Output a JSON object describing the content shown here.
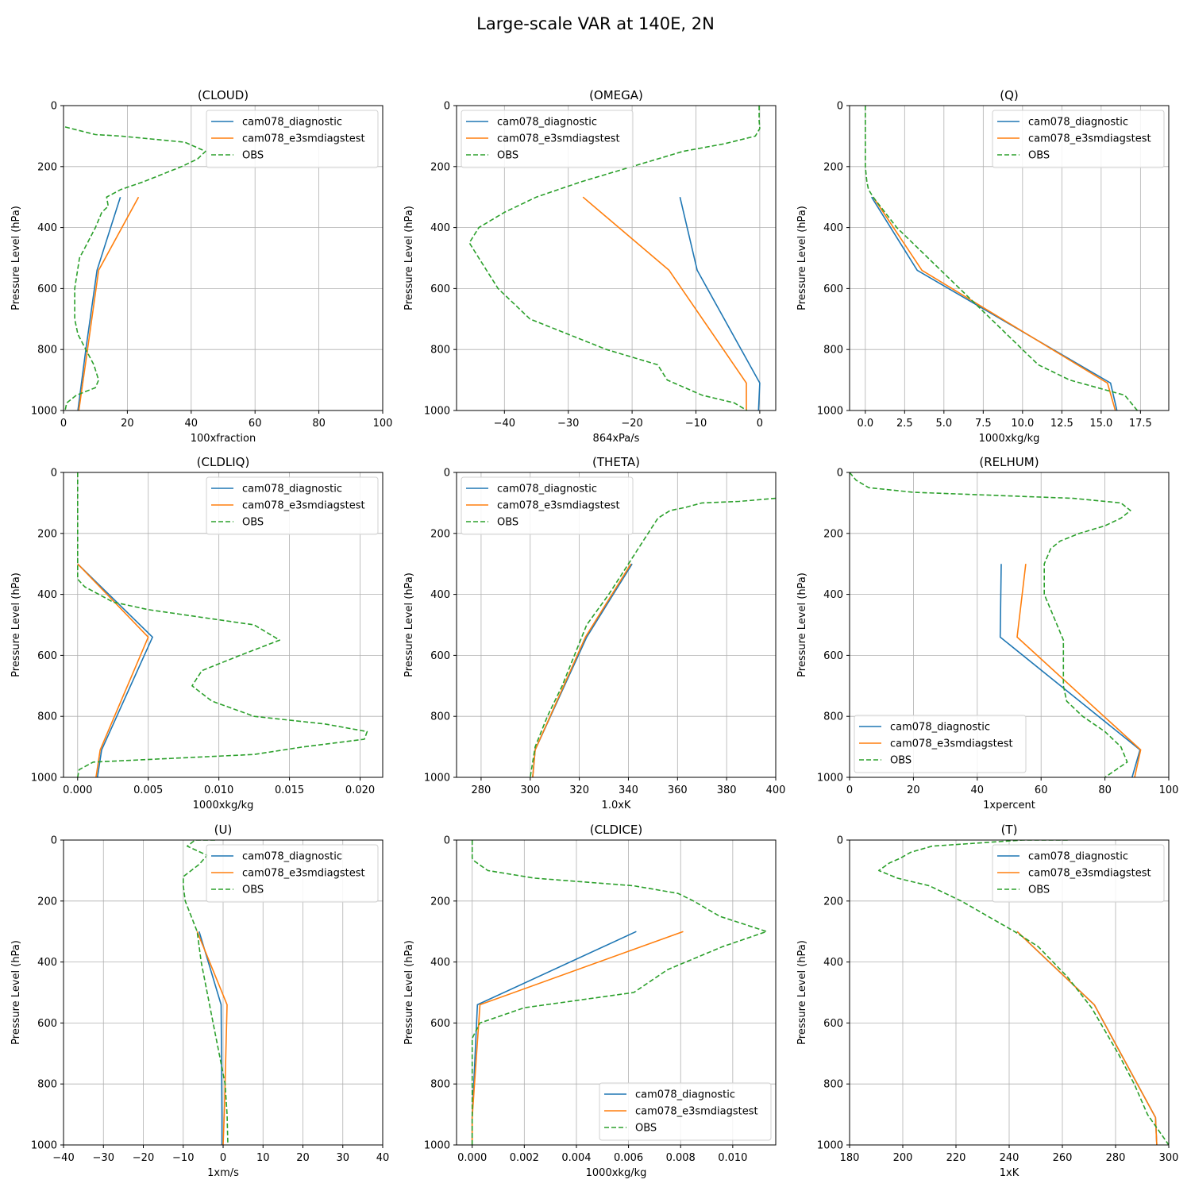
{
  "figure": {
    "title": "Large-scale VAR at 140E, 2N",
    "colors": {
      "diagnostic": "#1f77b4",
      "e3smdiagstest": "#ff7f0e",
      "obs": "#2ca02c"
    }
  },
  "chart_data": [
    {
      "type": "line",
      "title": "(CLOUD)",
      "xlabel": "100xfraction",
      "ylabel": "Pressure Level (hPa)",
      "xlim": [
        0,
        100
      ],
      "ylim": [
        1000,
        0
      ],
      "xticks": [
        0,
        20,
        40,
        60,
        80,
        100
      ],
      "xtick_labels": [
        "0",
        "20",
        "40",
        "60",
        "80",
        "100"
      ],
      "yticks": [
        0,
        200,
        400,
        600,
        800,
        1000
      ],
      "ytick_labels": [
        "0",
        "200",
        "400",
        "600",
        "800",
        "1000"
      ],
      "grid": true,
      "legend": "upper-right",
      "series": [
        {
          "name": "cam078_diagnostic",
          "style": "solid",
          "x": [
            17.8,
            10.5,
            7,
            4.5
          ],
          "y": [
            300,
            540,
            800,
            1000
          ]
        },
        {
          "name": "cam078_e3smdiagstest",
          "style": "solid",
          "x": [
            23.5,
            11,
            7.5,
            4.8
          ],
          "y": [
            300,
            540,
            800,
            1000
          ]
        },
        {
          "name": "OBS",
          "style": "dashed",
          "x": [
            0.5,
            10,
            18,
            38,
            44.5,
            42,
            37,
            31,
            25,
            18,
            13.5,
            14,
            12,
            10,
            7.5,
            5,
            3.5,
            3.5,
            4.5,
            7,
            9.5,
            11,
            10,
            4,
            1,
            0.5
          ],
          "y": [
            70,
            95,
            100,
            120,
            150,
            175,
            200,
            225,
            250,
            275,
            300,
            330,
            350,
            400,
            450,
            500,
            600,
            700,
            750,
            800,
            850,
            900,
            925,
            950,
            975,
            1000
          ]
        }
      ]
    },
    {
      "type": "line",
      "title": "(OMEGA)",
      "xlabel": "864xPa/s",
      "ylabel": "Pressure Level (hPa)",
      "xlim": [
        -47.5,
        2.5
      ],
      "ylim": [
        1000,
        0
      ],
      "xticks": [
        -40,
        -30,
        -20,
        -10,
        0
      ],
      "xtick_labels": [
        "−40",
        "−30",
        "−20",
        "−10",
        "0"
      ],
      "yticks": [
        0,
        200,
        400,
        600,
        800,
        1000
      ],
      "ytick_labels": [
        "0",
        "200",
        "400",
        "600",
        "800",
        "1000"
      ],
      "grid": true,
      "legend": "upper-left",
      "series": [
        {
          "name": "cam078_diagnostic",
          "style": "solid",
          "x": [
            -12.5,
            -9.8,
            0,
            -0.2
          ],
          "y": [
            300,
            540,
            910,
            1000
          ]
        },
        {
          "name": "cam078_e3smdiagstest",
          "style": "solid",
          "x": [
            -27.7,
            -14.2,
            -2.1,
            -2.1
          ],
          "y": [
            300,
            540,
            910,
            1000
          ]
        },
        {
          "name": "OBS",
          "style": "dashed",
          "x": [
            -0.1,
            -0.1,
            0,
            -0.7,
            -5.5,
            -12,
            -20,
            -28,
            -35,
            -40,
            -44,
            -45.5,
            -44,
            -41,
            -36,
            -30,
            -24,
            -16,
            -14.5,
            -9,
            -4,
            -2
          ],
          "y": [
            0,
            50,
            75,
            100,
            125,
            150,
            200,
            250,
            300,
            350,
            400,
            450,
            500,
            600,
            700,
            750,
            800,
            850,
            900,
            950,
            975,
            1000
          ]
        }
      ]
    },
    {
      "type": "line",
      "title": "(Q)",
      "xlabel": "1000xkg/kg",
      "ylabel": "Pressure Level (hPa)",
      "xlim": [
        -1,
        19.3
      ],
      "ylim": [
        1000,
        0
      ],
      "xticks": [
        0,
        2.5,
        5,
        7.5,
        10,
        12.5,
        15,
        17.5
      ],
      "xtick_labels": [
        "0.0",
        "2.5",
        "5.0",
        "7.5",
        "10.0",
        "12.5",
        "15.0",
        "17.5"
      ],
      "yticks": [
        0,
        200,
        400,
        600,
        800,
        1000
      ],
      "ytick_labels": [
        "0",
        "200",
        "400",
        "600",
        "800",
        "1000"
      ],
      "grid": true,
      "legend": "upper-right",
      "series": [
        {
          "name": "cam078_diagnostic",
          "style": "solid",
          "x": [
            0.4,
            3.3,
            15.6,
            16
          ],
          "y": [
            300,
            540,
            910,
            1000
          ]
        },
        {
          "name": "cam078_e3smdiagstest",
          "style": "solid",
          "x": [
            0.5,
            3.6,
            15.4,
            15.9
          ],
          "y": [
            300,
            540,
            910,
            1000
          ]
        },
        {
          "name": "OBS",
          "style": "dashed",
          "x": [
            0,
            0,
            0,
            0.1,
            0.2,
            0.5,
            2,
            4,
            6,
            8,
            10,
            11,
            13,
            16.5,
            17.3
          ],
          "y": [
            0,
            100,
            200,
            250,
            275,
            300,
            400,
            500,
            600,
            700,
            800,
            850,
            900,
            950,
            1000
          ]
        }
      ]
    },
    {
      "type": "line",
      "title": "(CLDLIQ)",
      "xlabel": "1000xkg/kg",
      "ylabel": "Pressure Level (hPa)",
      "xlim": [
        -0.001,
        0.0216
      ],
      "ylim": [
        1000,
        0
      ],
      "xticks": [
        0,
        0.005,
        0.01,
        0.015,
        0.02
      ],
      "xtick_labels": [
        "0.000",
        "0.005",
        "0.010",
        "0.015",
        "0.020"
      ],
      "yticks": [
        0,
        200,
        400,
        600,
        800,
        1000
      ],
      "ytick_labels": [
        "0",
        "200",
        "400",
        "600",
        "800",
        "1000"
      ],
      "grid": true,
      "legend": "upper-right",
      "series": [
        {
          "name": "cam078_diagnostic",
          "style": "solid",
          "x": [
            0,
            0.0053,
            0.0017,
            0.0014
          ],
          "y": [
            300,
            540,
            910,
            1000
          ]
        },
        {
          "name": "cam078_e3smdiagstest",
          "style": "solid",
          "x": [
            0,
            0.005,
            0.0016,
            0.0013
          ],
          "y": [
            300,
            540,
            910,
            1000
          ]
        },
        {
          "name": "OBS",
          "style": "dashed",
          "x": [
            0,
            0,
            0,
            0,
            0.0005,
            0.0015,
            0.0025,
            0.005,
            0.0125,
            0.0143,
            0.0115,
            0.0088,
            0.0081,
            0.0095,
            0.0125,
            0.0175,
            0.0205,
            0.0203,
            0.016,
            0.0125,
            0.0011,
            0.0001,
            0
          ],
          "y": [
            0,
            200,
            300,
            350,
            375,
            400,
            425,
            450,
            500,
            550,
            600,
            650,
            700,
            750,
            800,
            825,
            850,
            875,
            900,
            925,
            950,
            975,
            1000
          ]
        }
      ]
    },
    {
      "type": "line",
      "title": "(THETA)",
      "xlabel": "1.0xK",
      "ylabel": "Pressure Level (hPa)",
      "xlim": [
        270,
        400
      ],
      "ylim": [
        1000,
        0
      ],
      "xticks": [
        280,
        300,
        320,
        340,
        360,
        380,
        400
      ],
      "xtick_labels": [
        "280",
        "300",
        "320",
        "340",
        "360",
        "380",
        "400"
      ],
      "yticks": [
        0,
        200,
        400,
        600,
        800,
        1000
      ],
      "ytick_labels": [
        "0",
        "200",
        "400",
        "600",
        "800",
        "1000"
      ],
      "grid": true,
      "legend": "upper-left",
      "series": [
        {
          "name": "cam078_diagnostic",
          "style": "solid",
          "x": [
            341.5,
            323,
            302,
            301
          ],
          "y": [
            300,
            540,
            910,
            1000
          ]
        },
        {
          "name": "cam078_e3smdiagstest",
          "style": "solid",
          "x": [
            341,
            322.5,
            302,
            301
          ],
          "y": [
            300,
            540,
            910,
            1000
          ]
        },
        {
          "name": "OBS",
          "style": "dashed",
          "x": [
            400,
            385,
            370,
            363,
            357,
            352,
            348,
            344,
            340,
            332,
            323,
            318,
            313,
            307,
            302,
            300
          ],
          "y": [
            85,
            95,
            100,
            115,
            125,
            150,
            200,
            250,
            300,
            400,
            500,
            600,
            700,
            800,
            900,
            1000
          ]
        }
      ]
    },
    {
      "type": "line",
      "title": "(RELHUM)",
      "xlabel": "1xpercent",
      "ylabel": "Pressure Level (hPa)",
      "xlim": [
        0,
        100
      ],
      "ylim": [
        1000,
        0
      ],
      "xticks": [
        0,
        20,
        40,
        60,
        80,
        100
      ],
      "xtick_labels": [
        "0",
        "20",
        "40",
        "60",
        "80",
        "100"
      ],
      "yticks": [
        0,
        200,
        400,
        600,
        800,
        1000
      ],
      "ytick_labels": [
        "0",
        "200",
        "400",
        "600",
        "800",
        "1000"
      ],
      "grid": true,
      "legend": "lower-left",
      "series": [
        {
          "name": "cam078_diagnostic",
          "style": "solid",
          "x": [
            47.5,
            47.2,
            91,
            88.5
          ],
          "y": [
            300,
            540,
            910,
            1000
          ]
        },
        {
          "name": "cam078_e3smdiagstest",
          "style": "solid",
          "x": [
            55.2,
            52.5,
            91.2,
            89.3
          ],
          "y": [
            300,
            540,
            910,
            1000
          ]
        },
        {
          "name": "OBS",
          "style": "dashed",
          "x": [
            0,
            2,
            6,
            20,
            45,
            70,
            85,
            88,
            85,
            80,
            72,
            66,
            63,
            61,
            61,
            63,
            67,
            67,
            67,
            68,
            73,
            80,
            85,
            86,
            87,
            80
          ],
          "y": [
            0,
            25,
            50,
            65,
            75,
            85,
            100,
            125,
            150,
            175,
            200,
            225,
            250,
            300,
            400,
            450,
            550,
            650,
            700,
            750,
            800,
            850,
            900,
            925,
            950,
            1000
          ]
        }
      ]
    },
    {
      "type": "line",
      "title": "(U)",
      "xlabel": "1xm/s",
      "ylabel": "Pressure Level (hPa)",
      "xlim": [
        -40,
        40
      ],
      "ylim": [
        1000,
        0
      ],
      "xticks": [
        -40,
        -30,
        -20,
        -10,
        0,
        10,
        20,
        30,
        40
      ],
      "xtick_labels": [
        "−40",
        "−30",
        "−20",
        "−10",
        "0",
        "10",
        "20",
        "30",
        "40"
      ],
      "yticks": [
        0,
        200,
        400,
        600,
        800,
        1000
      ],
      "ytick_labels": [
        "0",
        "200",
        "400",
        "600",
        "800",
        "1000"
      ],
      "grid": true,
      "legend": "upper-right",
      "series": [
        {
          "name": "cam078_diagnostic",
          "style": "solid",
          "x": [
            -6,
            -0.5,
            -0.3,
            -0.3
          ],
          "y": [
            300,
            540,
            900,
            1000
          ]
        },
        {
          "name": "cam078_e3smdiagstest",
          "style": "solid",
          "x": [
            -6.5,
            1,
            0.3,
            0
          ],
          "y": [
            300,
            540,
            900,
            1000
          ]
        },
        {
          "name": "OBS",
          "style": "dashed",
          "x": [
            -2,
            -7,
            -9,
            -4,
            -6,
            -10,
            -10,
            -9.5,
            -8,
            -6.5,
            -5.5,
            -4,
            -2.5,
            -1,
            0.5,
            1,
            1.2
          ],
          "y": [
            0,
            0,
            20,
            50,
            80,
            120,
            150,
            200,
            250,
            300,
            400,
            500,
            600,
            700,
            800,
            900,
            1000
          ]
        }
      ]
    },
    {
      "type": "line",
      "title": "(CLDICE)",
      "xlabel": "1000xkg/kg",
      "ylabel": "Pressure Level (hPa)",
      "xlim": [
        -0.0006,
        0.01165
      ],
      "ylim": [
        1000,
        0
      ],
      "xticks": [
        0,
        0.002,
        0.004,
        0.006,
        0.008,
        0.01
      ],
      "xtick_labels": [
        "0.000",
        "0.002",
        "0.004",
        "0.006",
        "0.008",
        "0.010"
      ],
      "yticks": [
        0,
        200,
        400,
        600,
        800,
        1000
      ],
      "ytick_labels": [
        "0",
        "200",
        "400",
        "600",
        "800",
        "1000"
      ],
      "grid": true,
      "legend": "lower-right",
      "series": [
        {
          "name": "cam078_diagnostic",
          "style": "solid",
          "x": [
            0.0063,
            0.0002,
            0,
            0
          ],
          "y": [
            300,
            540,
            910,
            1000
          ]
        },
        {
          "name": "cam078_e3smdiagstest",
          "style": "solid",
          "x": [
            0.0081,
            0.0003,
            0,
            0
          ],
          "y": [
            300,
            540,
            910,
            1000
          ]
        },
        {
          "name": "OBS",
          "style": "dashed",
          "x": [
            0,
            0,
            0.0001,
            0.0006,
            0.0024,
            0.0062,
            0.0079,
            0.0085,
            0.0095,
            0.0113,
            0.0096,
            0.0075,
            0.0062,
            0.002,
            0.0003,
            0,
            0,
            0
          ],
          "y": [
            0,
            60,
            70,
            100,
            125,
            150,
            175,
            200,
            250,
            300,
            350,
            425,
            500,
            550,
            600,
            650,
            800,
            1000
          ]
        }
      ]
    },
    {
      "type": "line",
      "title": "(T)",
      "xlabel": "1xK",
      "ylabel": "Pressure Level (hPa)",
      "xlim": [
        180,
        300
      ],
      "ylim": [
        1000,
        0
      ],
      "xticks": [
        180,
        200,
        220,
        240,
        260,
        280,
        300
      ],
      "xtick_labels": [
        "180",
        "200",
        "220",
        "240",
        "260",
        "280",
        "300"
      ],
      "yticks": [
        0,
        200,
        400,
        600,
        800,
        1000
      ],
      "ytick_labels": [
        "0",
        "200",
        "400",
        "600",
        "800",
        "1000"
      ],
      "grid": true,
      "legend": "upper-right",
      "series": [
        {
          "name": "cam078_diagnostic",
          "style": "solid",
          "x": [
            243,
            272,
            295,
            295.5
          ],
          "y": [
            300,
            540,
            910,
            1000
          ]
        },
        {
          "name": "cam078_e3smdiagstest",
          "style": "solid",
          "x": [
            243,
            272,
            295,
            295.5
          ],
          "y": [
            300,
            540,
            910,
            1000
          ]
        },
        {
          "name": "OBS",
          "style": "dashed",
          "x": [
            262,
            245,
            228,
            211,
            203,
            199,
            195,
            191,
            198,
            210,
            222,
            232,
            242,
            251,
            262,
            271,
            281,
            287,
            292,
            300
          ],
          "y": [
            0,
            0,
            10,
            20,
            40,
            60,
            75,
            100,
            125,
            150,
            200,
            250,
            300,
            350,
            450,
            550,
            700,
            800,
            900,
            1000
          ]
        }
      ]
    }
  ]
}
